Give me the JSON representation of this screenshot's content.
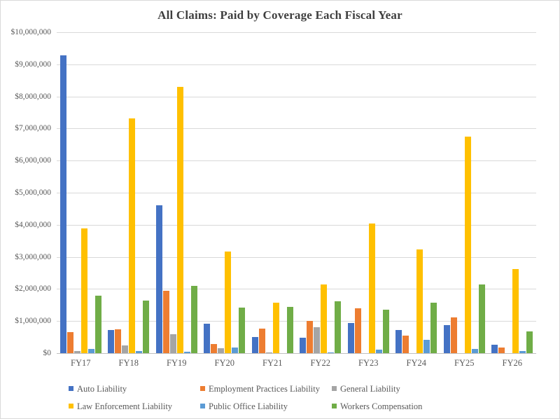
{
  "title": "All Claims: Paid by Coverage Each Fiscal Year",
  "chart_data": {
    "type": "bar",
    "title": "All Claims: Paid by Coverage Each Fiscal Year",
    "categories": [
      "FY17",
      "FY18",
      "FY19",
      "FY20",
      "FY21",
      "FY22",
      "FY23",
      "FY24",
      "FY25",
      "FY26"
    ],
    "series": [
      {
        "name": "Auto Liability",
        "color": "#4472C4",
        "values": [
          9290000,
          710000,
          4600000,
          920000,
          510000,
          490000,
          930000,
          730000,
          880000,
          270000
        ]
      },
      {
        "name": "Employment Practices Liability",
        "color": "#ED7D31",
        "values": [
          650000,
          740000,
          1940000,
          290000,
          770000,
          1000000,
          1400000,
          550000,
          1120000,
          170000
        ]
      },
      {
        "name": "General Liability",
        "color": "#A5A5A5",
        "values": [
          60000,
          230000,
          600000,
          150000,
          30000,
          810000,
          0,
          0,
          0,
          0
        ]
      },
      {
        "name": "Law Enforcement Liability",
        "color": "#FFC000",
        "values": [
          3880000,
          7310000,
          8290000,
          3170000,
          1570000,
          2130000,
          4040000,
          3240000,
          6740000,
          2630000
        ]
      },
      {
        "name": "Public Office Liability",
        "color": "#5B9BD5",
        "values": [
          130000,
          70000,
          40000,
          180000,
          0,
          30000,
          100000,
          420000,
          140000,
          70000
        ]
      },
      {
        "name": "Workers Compensation",
        "color": "#70AD47",
        "values": [
          1790000,
          1630000,
          2090000,
          1430000,
          1440000,
          1620000,
          1350000,
          1580000,
          2150000,
          680000
        ]
      }
    ],
    "xlabel": "",
    "ylabel": "",
    "ylim": [
      0,
      10000000
    ],
    "ytick_step": 1000000,
    "ytick_labels": [
      "$0",
      "$1,000,000",
      "$2,000,000",
      "$3,000,000",
      "$4,000,000",
      "$5,000,000",
      "$6,000,000",
      "$7,000,000",
      "$8,000,000",
      "$9,000,000",
      "$10,000,000"
    ],
    "grid": true,
    "legend_position": "bottom",
    "legend_rows": 2,
    "legend_columns": 3
  },
  "style": {
    "gridline_color": "#d9d9d9",
    "axis_line_color": "#c0c0c0",
    "tick_label_color": "#595959",
    "title_color": "#3f3f3f",
    "background": "#ffffff"
  }
}
